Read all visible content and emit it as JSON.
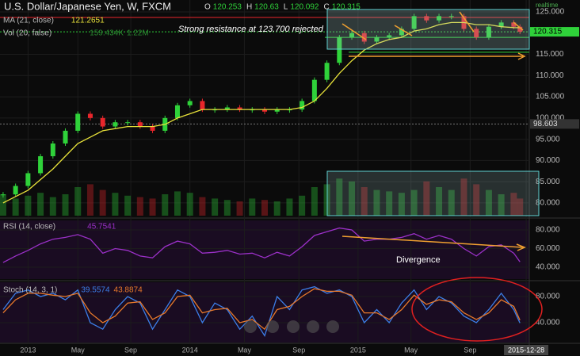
{
  "chart_data": {
    "type": "candlestick",
    "title": "U.S. Dollar/Japanese Yen, W, FXCM",
    "ohlc": [
      {
        "key": "O",
        "value": 120.253
      },
      {
        "key": "H",
        "value": 120.63
      },
      {
        "key": "L",
        "value": 120.092
      },
      {
        "key": "C",
        "value": 120.315
      }
    ],
    "x": [
      -8,
      -4,
      0,
      4,
      8,
      12,
      16,
      20,
      24,
      28,
      32,
      36,
      40,
      44,
      48,
      52,
      56,
      60,
      64,
      68,
      72,
      76,
      80,
      84,
      88,
      92,
      96,
      100,
      104,
      108,
      112,
      116,
      120,
      124,
      128,
      132,
      136,
      140,
      144,
      148,
      152,
      156,
      158
    ],
    "xlim": [
      -9,
      161
    ],
    "xticks": [
      {
        "value": 0,
        "label": "2013"
      },
      {
        "value": 16,
        "label": "May"
      },
      {
        "value": 33,
        "label": "Sep"
      },
      {
        "value": 52,
        "label": "2014"
      },
      {
        "value": 69.5,
        "label": "May"
      },
      {
        "value": 87,
        "label": "Sep"
      },
      {
        "value": 106,
        "label": "2015"
      },
      {
        "value": 123,
        "label": "May"
      },
      {
        "value": 142,
        "label": "Sep"
      },
      {
        "value": 160,
        "label": "2015-12-28"
      }
    ],
    "close": {
      "up_color": "#2fd23a",
      "down_color": "#e8262b",
      "values": [
        82,
        84,
        87,
        91,
        94,
        97,
        101,
        100,
        98,
        99,
        99,
        98,
        97,
        100,
        103,
        104,
        102,
        102,
        102.5,
        102,
        102,
        101.5,
        102,
        102,
        104,
        109,
        113,
        119,
        120,
        118,
        119,
        119.5,
        121,
        124,
        123,
        124,
        124,
        121,
        119,
        121.5,
        122.5,
        121.5,
        120.315
      ]
    },
    "series": [
      {
        "name": "MA (21, close)",
        "color": "#e8e23a",
        "last": 121.2651,
        "values": [
          80,
          81.5,
          83,
          85.5,
          88,
          91,
          94,
          95.5,
          97,
          97.5,
          98,
          98,
          98,
          98.5,
          100,
          101,
          102,
          102,
          102,
          102,
          102,
          102,
          102,
          102,
          102.5,
          104,
          107,
          110.5,
          113.5,
          116,
          117.5,
          118.5,
          119,
          120.5,
          121,
          122,
          122.5,
          122.5,
          122,
          122,
          121.5,
          121.3,
          121.2651
        ]
      }
    ],
    "volume": {
      "name": "Vol (20, false)",
      "ma_label": "159.434K",
      "last_label": "1.22M",
      "ylim": [
        0,
        4000
      ],
      "values": [
        1500,
        1200,
        1400,
        1600,
        1300,
        1500,
        2000,
        2200,
        1800,
        1600,
        1400,
        1300,
        1200,
        1500,
        1700,
        1600,
        1300,
        1200,
        1100,
        1000,
        1200,
        1100,
        1000,
        1200,
        1400,
        2000,
        2200,
        2600,
        2400,
        2000,
        1800,
        1700,
        1600,
        1800,
        2400,
        2000,
        1800,
        2600,
        2200,
        1800,
        1500,
        1600,
        1200
      ]
    },
    "ylim": [
      77,
      127.8
    ],
    "yticks": [
      {
        "value": 80,
        "label": "80.000"
      },
      {
        "value": 85,
        "label": "85.000"
      },
      {
        "value": 90,
        "label": "90.000"
      },
      {
        "value": 95,
        "label": "95.000"
      },
      {
        "value": 100,
        "label": "100.000"
      },
      {
        "value": 105,
        "label": "105.000"
      },
      {
        "value": 110,
        "label": "110.000"
      },
      {
        "value": 115,
        "label": "115.000"
      },
      {
        "value": 125,
        "label": "125.000"
      }
    ],
    "last_price": 120.315,
    "marker_level": 98.603,
    "resistance": 123.7,
    "supports": [
      119,
      115.5
    ],
    "annotation": "Strong resistance at 123.700 rejected",
    "realtime": "realtime",
    "rsi": {
      "name": "RSI (14, close)",
      "color": "#9b30c8",
      "last": 45.7541,
      "annotation": "Divergence",
      "ylim": [
        27.2,
        90.2
      ],
      "yticks": [
        {
          "value": 80,
          "label": "80.000"
        },
        {
          "value": 60,
          "label": "60.000"
        },
        {
          "value": 40,
          "label": "40.000"
        }
      ],
      "values": [
        45,
        52,
        58,
        65,
        70,
        72,
        75,
        70,
        55,
        60,
        58,
        52,
        50,
        62,
        68,
        65,
        55,
        56,
        58,
        54,
        55,
        50,
        56,
        52,
        62,
        74,
        78,
        82,
        80,
        68,
        70,
        70,
        72,
        76,
        70,
        74,
        70,
        60,
        52,
        62,
        64,
        55,
        45.7541
      ]
    },
    "stoch": {
      "name": "Stoch (14, 3, 1)",
      "ylim": [
        9.7,
        101.8
      ],
      "yticks": [
        {
          "value": 80,
          "label": "80.000"
        },
        {
          "value": 40,
          "label": "40.000"
        }
      ],
      "series": [
        {
          "color": "#3c7ee8",
          "last": 39.5574,
          "values": [
            60,
            85,
            90,
            80,
            85,
            75,
            90,
            40,
            30,
            60,
            80,
            70,
            30,
            60,
            90,
            80,
            40,
            70,
            60,
            30,
            50,
            20,
            80,
            60,
            90,
            95,
            85,
            90,
            80,
            40,
            60,
            40,
            70,
            90,
            60,
            80,
            70,
            50,
            40,
            60,
            85,
            60,
            39.5574
          ]
        },
        {
          "color": "#e8792b",
          "last": 43.8874,
          "values": [
            55,
            75,
            85,
            85,
            82,
            80,
            85,
            55,
            40,
            50,
            70,
            72,
            45,
            55,
            80,
            82,
            55,
            60,
            62,
            40,
            45,
            30,
            60,
            65,
            80,
            92,
            88,
            88,
            82,
            55,
            55,
            45,
            60,
            82,
            68,
            75,
            72,
            55,
            45,
            55,
            75,
            65,
            43.8874
          ]
        }
      ]
    }
  }
}
